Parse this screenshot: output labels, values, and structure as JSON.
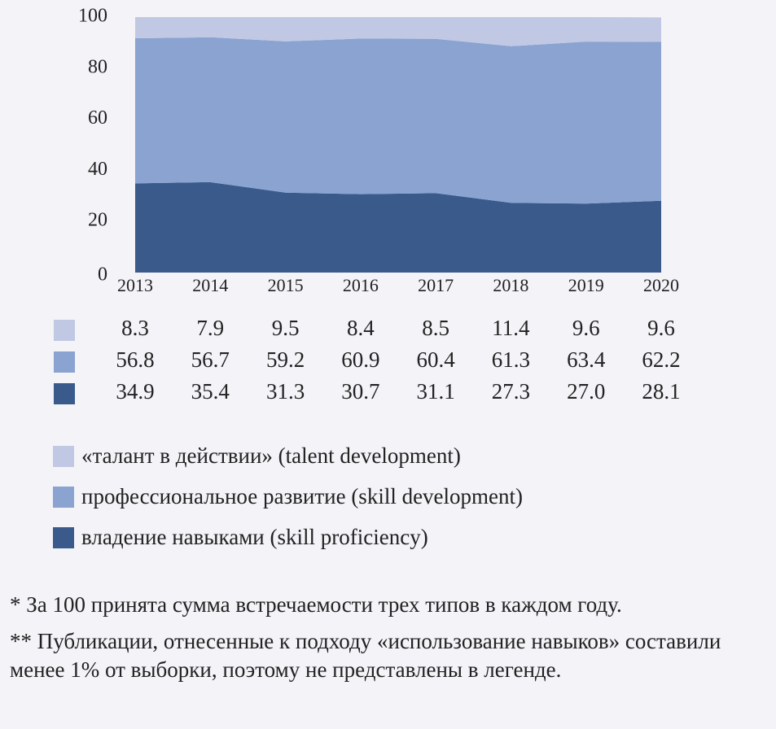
{
  "chart_data": {
    "type": "stacked-area",
    "categories": [
      "2013",
      "2014",
      "2015",
      "2016",
      "2017",
      "2018",
      "2019",
      "2020"
    ],
    "series": [
      {
        "name": "«талант в действии» (talent development)",
        "color": "#c0c8e4",
        "values": [
          8.3,
          7.9,
          9.5,
          8.4,
          8.5,
          11.4,
          9.6,
          9.6
        ]
      },
      {
        "name": "профессиональное развитие (skill development)",
        "color": "#8aa3d0",
        "values": [
          56.8,
          56.7,
          59.2,
          60.9,
          60.4,
          61.3,
          63.4,
          62.2
        ]
      },
      {
        "name": "владение навыками (skill proficiency)",
        "color": "#3a5a8c",
        "values": [
          34.9,
          35.4,
          31.3,
          30.7,
          31.1,
          27.3,
          27.0,
          28.1
        ],
        "value_labels": [
          "34.9",
          "35.4",
          "31.3",
          "30.7",
          "31.1",
          "27.3",
          "27.0",
          "28.1"
        ]
      }
    ],
    "ylim": [
      0,
      100
    ],
    "yticks": [
      0,
      20,
      40,
      60,
      80,
      100
    ],
    "grid": false,
    "notes": [
      "* За 100 принята сумма встречаемости трех типов в каждом году.",
      "** Публикации, отнесенные к подходу «использование навыков» составили менее 1% от выборки, поэтому не представлены в легенде."
    ]
  }
}
